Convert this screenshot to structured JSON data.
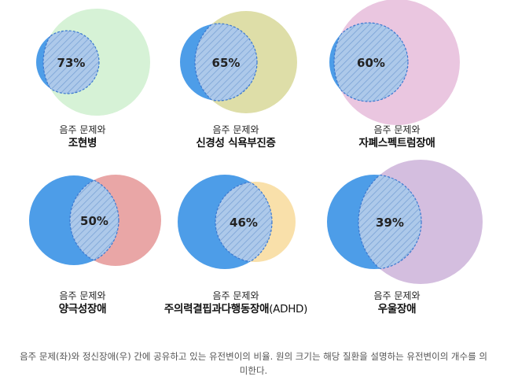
{
  "colors": {
    "blue": "#4d9de8",
    "overlap_fill": "#adc9ea",
    "hatch": "#7aa3d6",
    "dash": "#3b78d0"
  },
  "items": [
    {
      "pct": "73%",
      "line1": "음주 문제와",
      "line2": "조현병",
      "suffix": "",
      "color": "#d6f2d6"
    },
    {
      "pct": "65%",
      "line1": "음주 문제와",
      "line2": "신경성 식욕부진증",
      "suffix": "",
      "color": "#dedea8"
    },
    {
      "pct": "60%",
      "line1": "음주 문제와",
      "line2": "자폐스펙트럼장애",
      "suffix": "",
      "color": "#eac6e0"
    },
    {
      "pct": "50%",
      "line1": "음주 문제와",
      "line2": "양극성장애",
      "suffix": "",
      "color": "#e9a6a6"
    },
    {
      "pct": "46%",
      "line1": "음주 문제와",
      "line2": "주의력결핍과다행동장애",
      "suffix": "(ADHD)",
      "color": "#f9e0aa"
    },
    {
      "pct": "39%",
      "line1": "음주 문제와",
      "line2": "우울장애",
      "suffix": "",
      "color": "#d4bedf"
    }
  ],
  "caption": {
    "line1": "음주 문제(좌)와 정신장애(우) 간에 공유하고 있는 유전변이의 비율. 원의 크기는 해당 질환을 설명하는 유전변이의 개수를 의",
    "line2": "미한다."
  }
}
